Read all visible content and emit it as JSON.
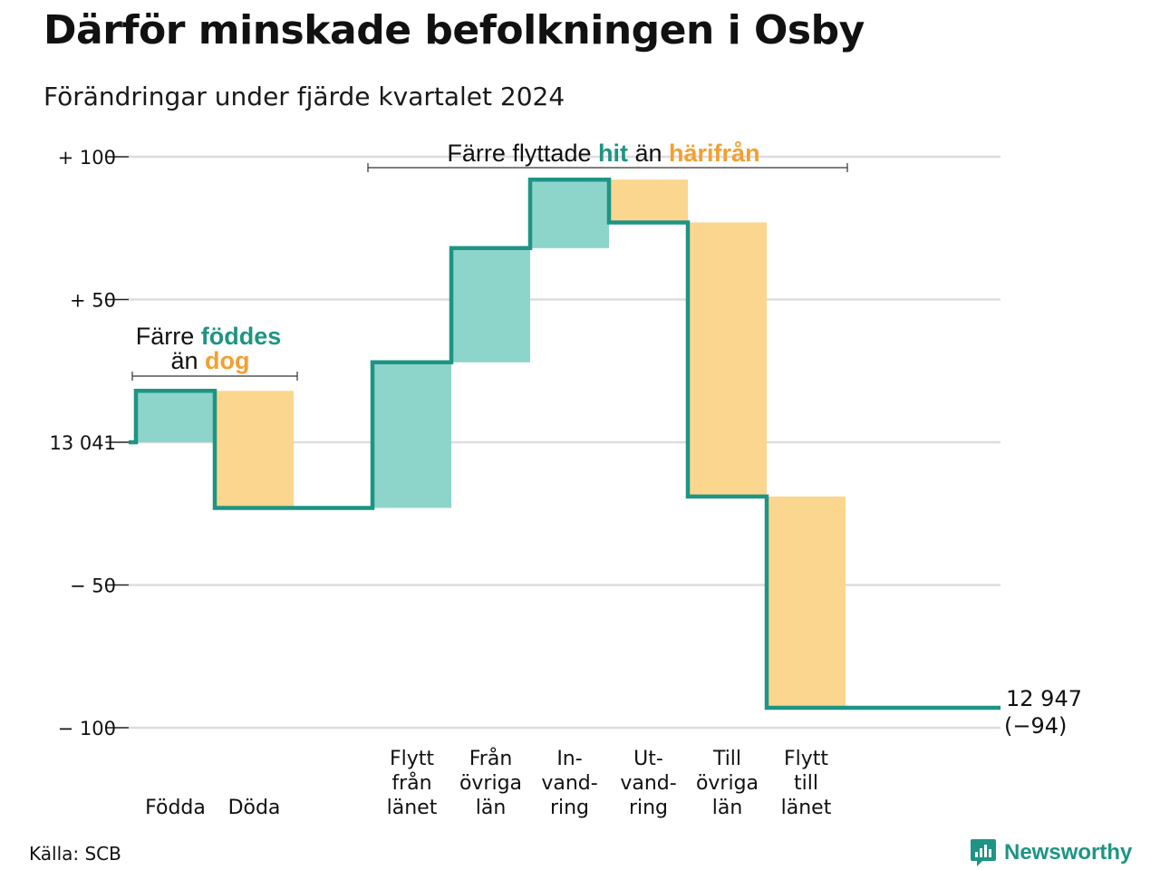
{
  "title": "Därför minskade befolkningen i Osby",
  "subtitle": "Förändringar under fjärde kvartalet 2024",
  "source": "Källa: SCB",
  "brand": "Newsworthy",
  "colors": {
    "increase": "#8dd5cb",
    "decrease": "#fad68e",
    "line": "#1e9484",
    "accent_orange": "#f2a031",
    "accent_teal": "#1e9484",
    "grid": "#dddddd"
  },
  "annotations": {
    "births": {
      "pre": "Färre ",
      "a": "föddes",
      "mid": "än ",
      "b": "dog"
    },
    "migration": {
      "pre": "Färre flyttade ",
      "a": "hit",
      "mid": " än ",
      "b": "härifrån"
    }
  },
  "chart_data": {
    "type": "waterfall",
    "base_value": 13041,
    "end_value": 12947,
    "end_label": "12 947",
    "end_change_label": "(−94)",
    "y_range_relative": [
      -100,
      100
    ],
    "y_ticks": [
      {
        "value": 100,
        "label": "+ 100"
      },
      {
        "value": 50,
        "label": "+  50"
      },
      {
        "value": 0,
        "label": "13 041"
      },
      {
        "value": -50,
        "label": "−  50"
      },
      {
        "value": -100,
        "label": "− 100"
      }
    ],
    "grid": true,
    "steps": [
      {
        "label": [
          "Födda"
        ],
        "value": 18
      },
      {
        "label": [
          "Döda"
        ],
        "value": -41
      },
      {
        "label": [],
        "value": 0
      },
      {
        "label": [
          "Flytt",
          "från",
          "länet"
        ],
        "value": 51
      },
      {
        "label": [
          "Från",
          "övriga",
          "län"
        ],
        "value": 40
      },
      {
        "label": [
          "In-",
          "vand-",
          "ring"
        ],
        "value": 24
      },
      {
        "label": [
          "Ut-",
          "vand-",
          "ring"
        ],
        "value": -15
      },
      {
        "label": [
          "Till",
          "övriga",
          "län"
        ],
        "value": -96
      },
      {
        "label": [
          "Flytt",
          "till",
          "länet"
        ],
        "value": -74
      }
    ]
  }
}
